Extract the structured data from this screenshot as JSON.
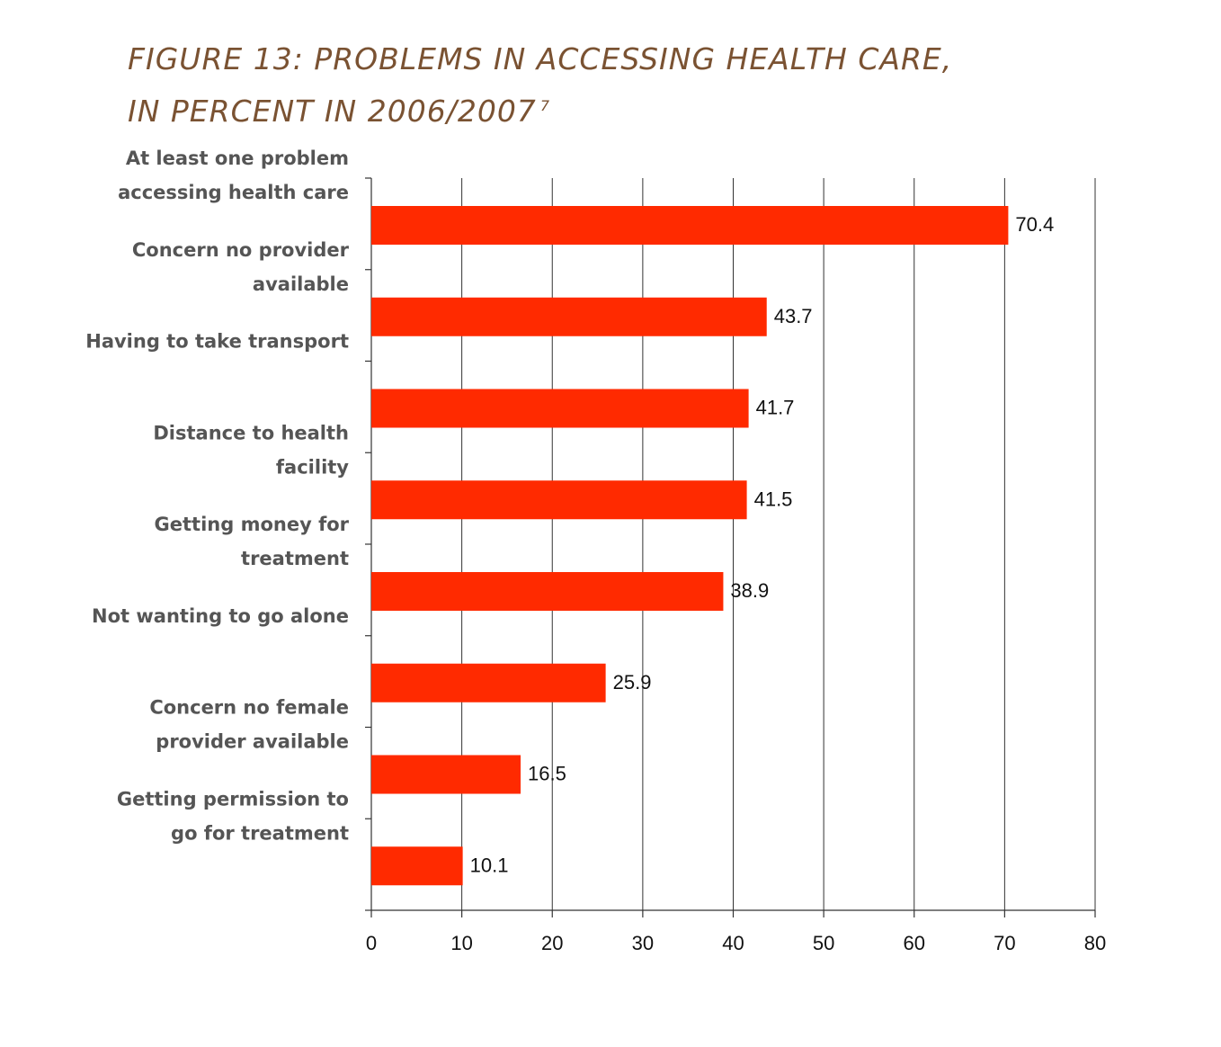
{
  "title": {
    "line1": "FIGURE 13:  PROBLEMS IN ACCESSING HEALTH CARE,",
    "line2": "IN PERCENT  IN 2006/2007",
    "superscript": "7"
  },
  "colors": {
    "bar": "#ff2a00",
    "title": "#7a5232",
    "label": "#555555"
  },
  "chart_data": {
    "type": "bar",
    "orientation": "horizontal",
    "categories": [
      [
        "At least one problem",
        "accessing health care"
      ],
      [
        "Concern no provider",
        "available"
      ],
      [
        "Having to take transport"
      ],
      [
        "Distance to health",
        "facility"
      ],
      [
        "Getting money for",
        "treatment"
      ],
      [
        "Not wanting to go alone"
      ],
      [
        "Concern no female",
        "provider available"
      ],
      [
        "Getting permission to",
        "go for treatment"
      ]
    ],
    "values": [
      70.4,
      43.7,
      41.7,
      41.5,
      38.9,
      25.9,
      16.5,
      10.1
    ],
    "data_labels": [
      "70.4",
      "43.7",
      "41.7",
      "41.5",
      "38.9",
      "25.9",
      "16.5",
      "10.1"
    ],
    "xlim": [
      0,
      80
    ],
    "xticks": [
      0,
      10,
      20,
      30,
      40,
      50,
      60,
      70,
      80
    ],
    "grid": true,
    "legend": "none"
  }
}
